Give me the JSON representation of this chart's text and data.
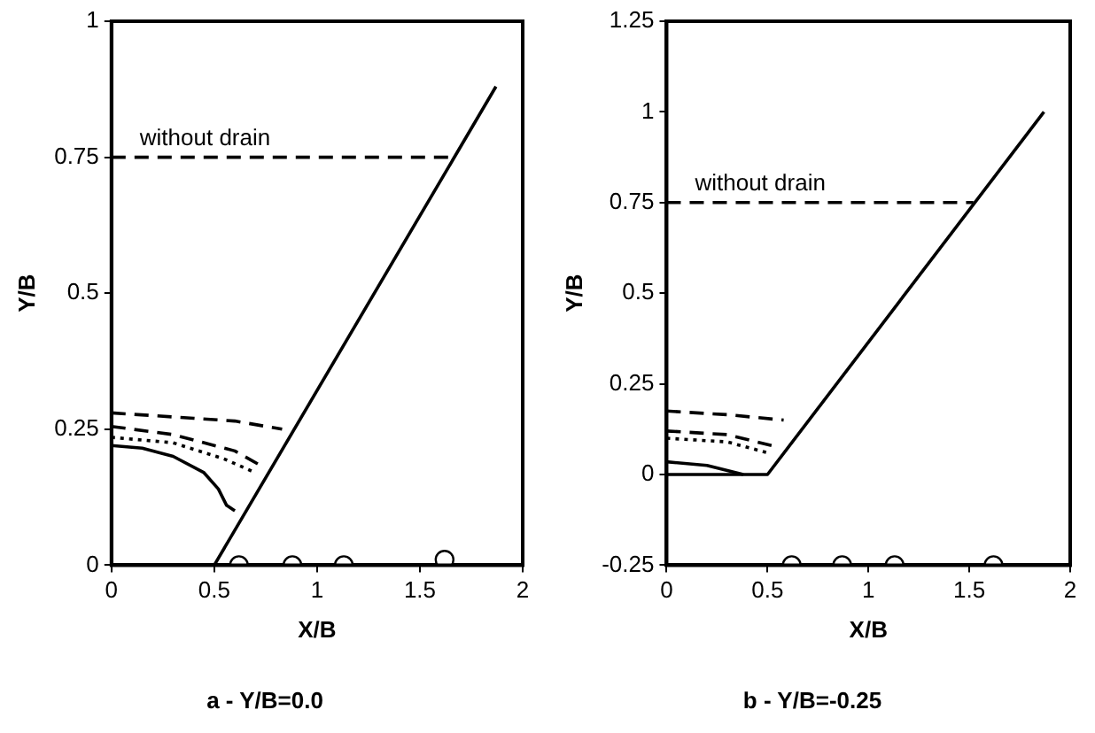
{
  "chart_data": [
    {
      "type": "line",
      "title": "a - Y/B=0.0",
      "xlabel": "X/B",
      "ylabel": "Y/B",
      "xlim": [
        0,
        2
      ],
      "xticks": [
        0,
        0.5,
        1,
        1.5,
        2
      ],
      "ylim": [
        0,
        1
      ],
      "yticks": [
        0,
        0.25,
        0.5,
        0.75,
        1
      ],
      "grid": false,
      "legend": false,
      "series": [
        {
          "type": "line",
          "color": "#000000",
          "line_style": "solid",
          "marker": "none",
          "x": [
            0,
            0.5,
            1.87
          ],
          "values": [
            0,
            0,
            0.88
          ]
        },
        {
          "type": "line",
          "name": "without drain",
          "color": "#000000",
          "line_style": "dashed",
          "marker": "none",
          "x": [
            0,
            1.65
          ],
          "values": [
            0.75,
            0.75
          ]
        },
        {
          "type": "line",
          "color": "#000000",
          "line_style": "dashed",
          "marker": "none",
          "x": [
            0,
            0.4,
            0.6,
            0.83
          ],
          "values": [
            0.28,
            0.27,
            0.265,
            0.25
          ]
        },
        {
          "type": "line",
          "color": "#000000",
          "line_style": "dashed",
          "marker": "none",
          "x": [
            0,
            0.3,
            0.6,
            0.74
          ],
          "values": [
            0.255,
            0.24,
            0.21,
            0.18
          ]
        },
        {
          "type": "line",
          "color": "#000000",
          "line_style": "dotted",
          "marker": "none",
          "x": [
            0,
            0.3,
            0.55,
            0.7
          ],
          "values": [
            0.235,
            0.225,
            0.195,
            0.17
          ]
        },
        {
          "type": "line",
          "color": "#000000",
          "line_style": "solid",
          "marker": "none",
          "x": [
            0,
            0.15,
            0.3,
            0.45,
            0.52,
            0.56,
            0.6
          ],
          "values": [
            0.22,
            0.215,
            0.2,
            0.17,
            0.14,
            0.11,
            0.1
          ]
        },
        {
          "type": "scatter",
          "color": "#000000",
          "marker": "circle",
          "x": [
            0.62,
            0.88,
            1.13,
            1.62
          ],
          "values": [
            0,
            0,
            0,
            0.01
          ]
        }
      ]
    },
    {
      "type": "line",
      "title": "b - Y/B=-0.25",
      "xlabel": "X/B",
      "ylabel": "Y/B",
      "xlim": [
        0,
        2
      ],
      "xticks": [
        0,
        0.5,
        1,
        1.5,
        2
      ],
      "ylim": [
        -0.25,
        1.25
      ],
      "yticks": [
        -0.25,
        0,
        0.25,
        0.5,
        0.75,
        1,
        1.25
      ],
      "grid": false,
      "legend": false,
      "series": [
        {
          "type": "line",
          "color": "#000000",
          "line_style": "solid",
          "marker": "none",
          "x": [
            0,
            0.5,
            1.87
          ],
          "values": [
            0,
            0,
            1.0
          ]
        },
        {
          "type": "line",
          "name": "without drain",
          "color": "#000000",
          "line_style": "dashed",
          "marker": "none",
          "x": [
            0,
            1.52
          ],
          "values": [
            0.75,
            0.75
          ]
        },
        {
          "type": "line",
          "color": "#000000",
          "line_style": "dashed",
          "marker": "none",
          "x": [
            0,
            0.3,
            0.58
          ],
          "values": [
            0.175,
            0.165,
            0.15
          ]
        },
        {
          "type": "line",
          "color": "#000000",
          "line_style": "dashed",
          "marker": "none",
          "x": [
            0,
            0.3,
            0.52
          ],
          "values": [
            0.12,
            0.11,
            0.08
          ]
        },
        {
          "type": "line",
          "color": "#000000",
          "line_style": "dotted",
          "marker": "none",
          "x": [
            0,
            0.3,
            0.5
          ],
          "values": [
            0.1,
            0.09,
            0.06
          ]
        },
        {
          "type": "line",
          "color": "#000000",
          "line_style": "solid",
          "marker": "none",
          "x": [
            0,
            0.2,
            0.38
          ],
          "values": [
            0.035,
            0.025,
            0
          ]
        },
        {
          "type": "scatter",
          "color": "#000000",
          "marker": "circle",
          "x": [
            0.62,
            0.87,
            1.13,
            1.62
          ],
          "values": [
            -0.25,
            -0.25,
            -0.25,
            -0.25
          ]
        }
      ]
    }
  ]
}
